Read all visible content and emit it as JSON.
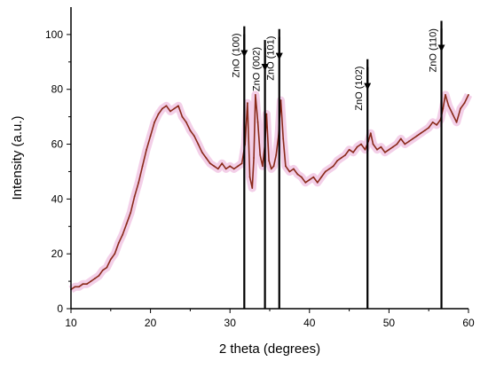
{
  "chart_data": {
    "type": "line",
    "title": "",
    "xlabel": "2 theta (degrees)",
    "ylabel": "Intensity (a.u.)",
    "xlim": [
      10,
      60
    ],
    "ylim": [
      0,
      110
    ],
    "x_ticks": [
      10,
      20,
      30,
      40,
      50,
      60
    ],
    "y_ticks": [
      0,
      20,
      40,
      60,
      80,
      100
    ],
    "grid": false,
    "colors": {
      "line": "#8a2a1a",
      "glow": "#e9a7d6",
      "trace_green": "#4a7a2a",
      "axis": "#000000"
    },
    "series": [
      {
        "x": [
          10,
          10.5,
          11,
          11.5,
          12,
          12.5,
          13,
          13.5,
          14,
          14.5,
          15,
          15.5,
          16,
          16.5,
          17,
          17.5,
          18,
          18.5,
          19,
          19.5,
          20,
          20.5,
          21,
          21.5,
          22,
          22.5,
          23,
          23.5,
          24,
          24.5,
          25,
          25.5,
          26,
          26.5,
          27,
          27.5,
          28,
          28.5,
          29,
          29.5,
          30,
          30.5,
          31,
          31.5,
          31.9,
          32.2,
          32.5,
          32.8,
          33.0,
          33.2,
          33.5,
          33.8,
          34.1,
          34.4,
          34.6,
          34.9,
          35.2,
          35.5,
          35.8,
          36.1,
          36.4,
          36.7,
          37.0,
          37.5,
          38,
          38.5,
          39,
          39.5,
          40,
          40.5,
          41,
          41.5,
          42,
          42.5,
          43,
          43.5,
          44,
          44.5,
          45,
          45.5,
          46,
          46.5,
          47,
          47.4,
          47.7,
          48,
          48.5,
          49,
          49.5,
          50,
          50.5,
          51,
          51.5,
          52,
          52.5,
          53,
          53.5,
          54,
          54.5,
          55,
          55.5,
          56,
          56.5,
          56.8,
          57.1,
          57.5,
          58,
          58.5,
          59,
          59.5,
          60
        ],
        "values": [
          7,
          8,
          8,
          9,
          9,
          10,
          11,
          12,
          14,
          15,
          18,
          20,
          24,
          27,
          31,
          35,
          41,
          46,
          52,
          58,
          63,
          68,
          71,
          73,
          74,
          72,
          73,
          74,
          70,
          68,
          65,
          63,
          60,
          57,
          55,
          53,
          52,
          51,
          53,
          51,
          52,
          51,
          52,
          53,
          60,
          75,
          48,
          44,
          55,
          78,
          68,
          56,
          52,
          60,
          71,
          54,
          51,
          52,
          56,
          63,
          76,
          62,
          52,
          50,
          51,
          49,
          48,
          46,
          47,
          48,
          46,
          48,
          50,
          51,
          52,
          54,
          55,
          56,
          58,
          57,
          59,
          60,
          58,
          61,
          64,
          60,
          58,
          59,
          57,
          58,
          59,
          60,
          62,
          60,
          61,
          62,
          63,
          64,
          65,
          66,
          68,
          67,
          69,
          73,
          78,
          74,
          71,
          68,
          73,
          75,
          78
        ]
      }
    ],
    "annotations": [
      {
        "label": "ZnO (100)",
        "x": 31.8,
        "y_top": 103
      },
      {
        "label": "ZnO (002)",
        "x": 34.4,
        "y_top": 98
      },
      {
        "label": "ZnO (101)",
        "x": 36.2,
        "y_top": 102
      },
      {
        "label": "ZnO (102)",
        "x": 47.3,
        "y_top": 91
      },
      {
        "label": "ZnO (110)",
        "x": 56.6,
        "y_top": 105
      }
    ]
  }
}
